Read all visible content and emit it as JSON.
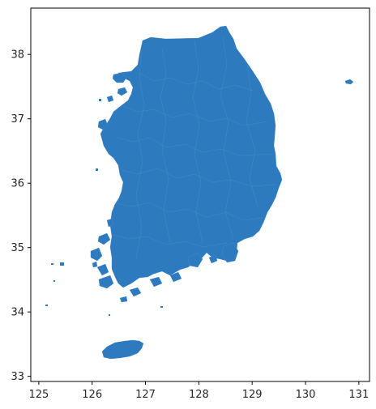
{
  "chart_data": {
    "type": "map",
    "region_color": "#2d7abf",
    "x_ticks": [
      125,
      126,
      127,
      128,
      129,
      130,
      131
    ],
    "y_ticks": [
      33,
      34,
      35,
      36,
      37,
      38
    ],
    "xlim": [
      124.85,
      131.2
    ],
    "ylim": [
      32.92,
      38.72
    ],
    "grid": false,
    "title": "",
    "xlabel": "",
    "ylabel": ""
  }
}
